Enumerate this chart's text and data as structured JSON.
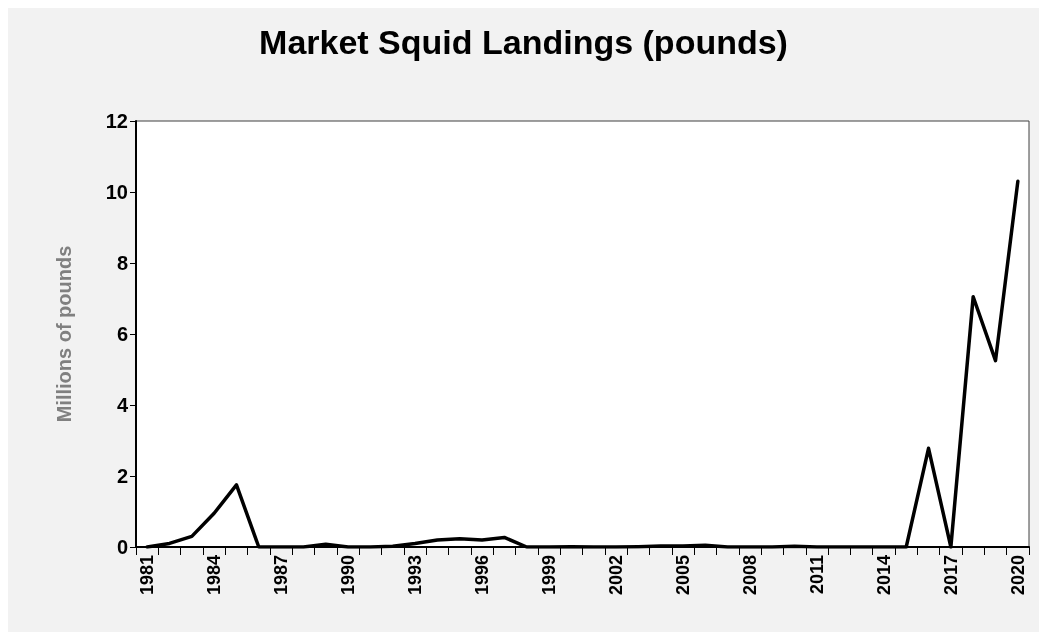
{
  "chart_data": {
    "type": "line",
    "title": "Market Squid Landings (pounds)",
    "ylabel": "Millions of pounds",
    "categories": [
      "1981",
      null,
      null,
      "1984",
      null,
      null,
      "1987",
      null,
      null,
      "1990",
      null,
      null,
      "1993",
      null,
      null,
      "1996",
      null,
      null,
      "1999",
      null,
      null,
      "2002",
      null,
      null,
      "2005",
      null,
      null,
      "2008",
      null,
      null,
      "2011",
      null,
      null,
      "2014",
      null,
      null,
      "2017",
      null,
      null,
      "2020"
    ],
    "series": [
      {
        "color": "#000000",
        "values": [
          0,
          0.1,
          0.3,
          0.95,
          1.75,
          0,
          0,
          0,
          0.08,
          0,
          0,
          0.02,
          0.1,
          0.2,
          0.23,
          0.2,
          0.27,
          0,
          0,
          0.01,
          0,
          0,
          0.01,
          0.03,
          0.03,
          0.05,
          0,
          0,
          0,
          0.02,
          0,
          0,
          0,
          0,
          0,
          2.78,
          0,
          7.05,
          5.25,
          10.3
        ]
      }
    ],
    "ylim": [
      0,
      12
    ],
    "yticks": [
      0,
      2,
      4,
      6,
      8,
      10,
      12
    ],
    "grid": false,
    "marker": "none",
    "line_style": "solid"
  }
}
